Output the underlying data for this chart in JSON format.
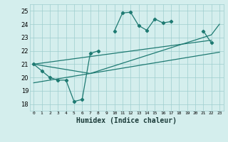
{
  "xlabel": "Humidex (Indice chaleur)",
  "background_color": "#d4eeed",
  "grid_color": "#9ecece",
  "line_color": "#1e7a72",
  "xlim": [
    -0.5,
    23.5
  ],
  "ylim": [
    17.5,
    25.5
  ],
  "xticks": [
    0,
    1,
    2,
    3,
    4,
    5,
    6,
    7,
    8,
    9,
    10,
    11,
    12,
    13,
    14,
    15,
    16,
    17,
    18,
    19,
    20,
    21,
    22,
    23
  ],
  "yticks": [
    18,
    19,
    20,
    21,
    22,
    23,
    24,
    25
  ],
  "zigzag_x": [
    0,
    1,
    2,
    3,
    4,
    5,
    6,
    7,
    8,
    null,
    10,
    11,
    12,
    13,
    14,
    15,
    16,
    17,
    null,
    null,
    null,
    21,
    22,
    null
  ],
  "zigzag_y": [
    21.0,
    20.5,
    20.0,
    19.8,
    19.8,
    18.2,
    18.35,
    21.8,
    22.0,
    null,
    23.5,
    24.85,
    24.9,
    23.9,
    23.55,
    24.4,
    24.1,
    24.2,
    null,
    null,
    null,
    23.5,
    22.6,
    null
  ],
  "trend1_x": [
    0,
    22
  ],
  "trend1_y": [
    21.0,
    22.8
  ],
  "trend2_x": [
    0,
    7,
    22,
    23
  ],
  "trend2_y": [
    21.0,
    20.3,
    23.2,
    24.0
  ],
  "trend3_x": [
    0,
    23
  ],
  "trend3_y": [
    19.6,
    21.9
  ]
}
